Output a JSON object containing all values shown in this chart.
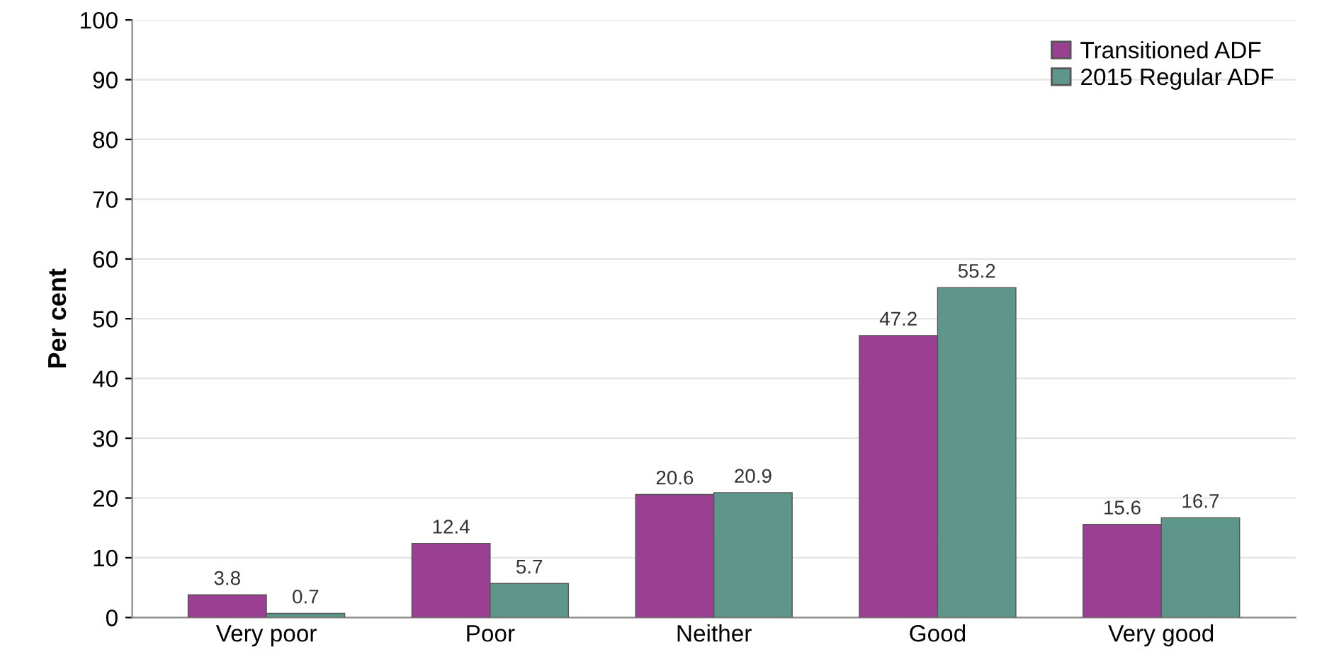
{
  "chart_data": {
    "type": "bar",
    "ylabel": "Per cent",
    "categories": [
      "Very poor",
      "Poor",
      "Neither",
      "Good",
      "Very good"
    ],
    "series": [
      {
        "name": "Transitioned ADF",
        "color": "#9b3f93",
        "values": [
          3.8,
          12.4,
          20.6,
          47.2,
          15.6
        ]
      },
      {
        "name": "2015 Regular ADF",
        "color": "#5f968c",
        "values": [
          0.7,
          5.7,
          20.9,
          55.2,
          16.7
        ]
      }
    ],
    "ylim": [
      0,
      100
    ],
    "yticks": [
      0,
      10,
      20,
      30,
      40,
      50,
      60,
      70,
      80,
      90,
      100
    ],
    "grid": "y",
    "legend": "top right",
    "data_labels": true
  }
}
